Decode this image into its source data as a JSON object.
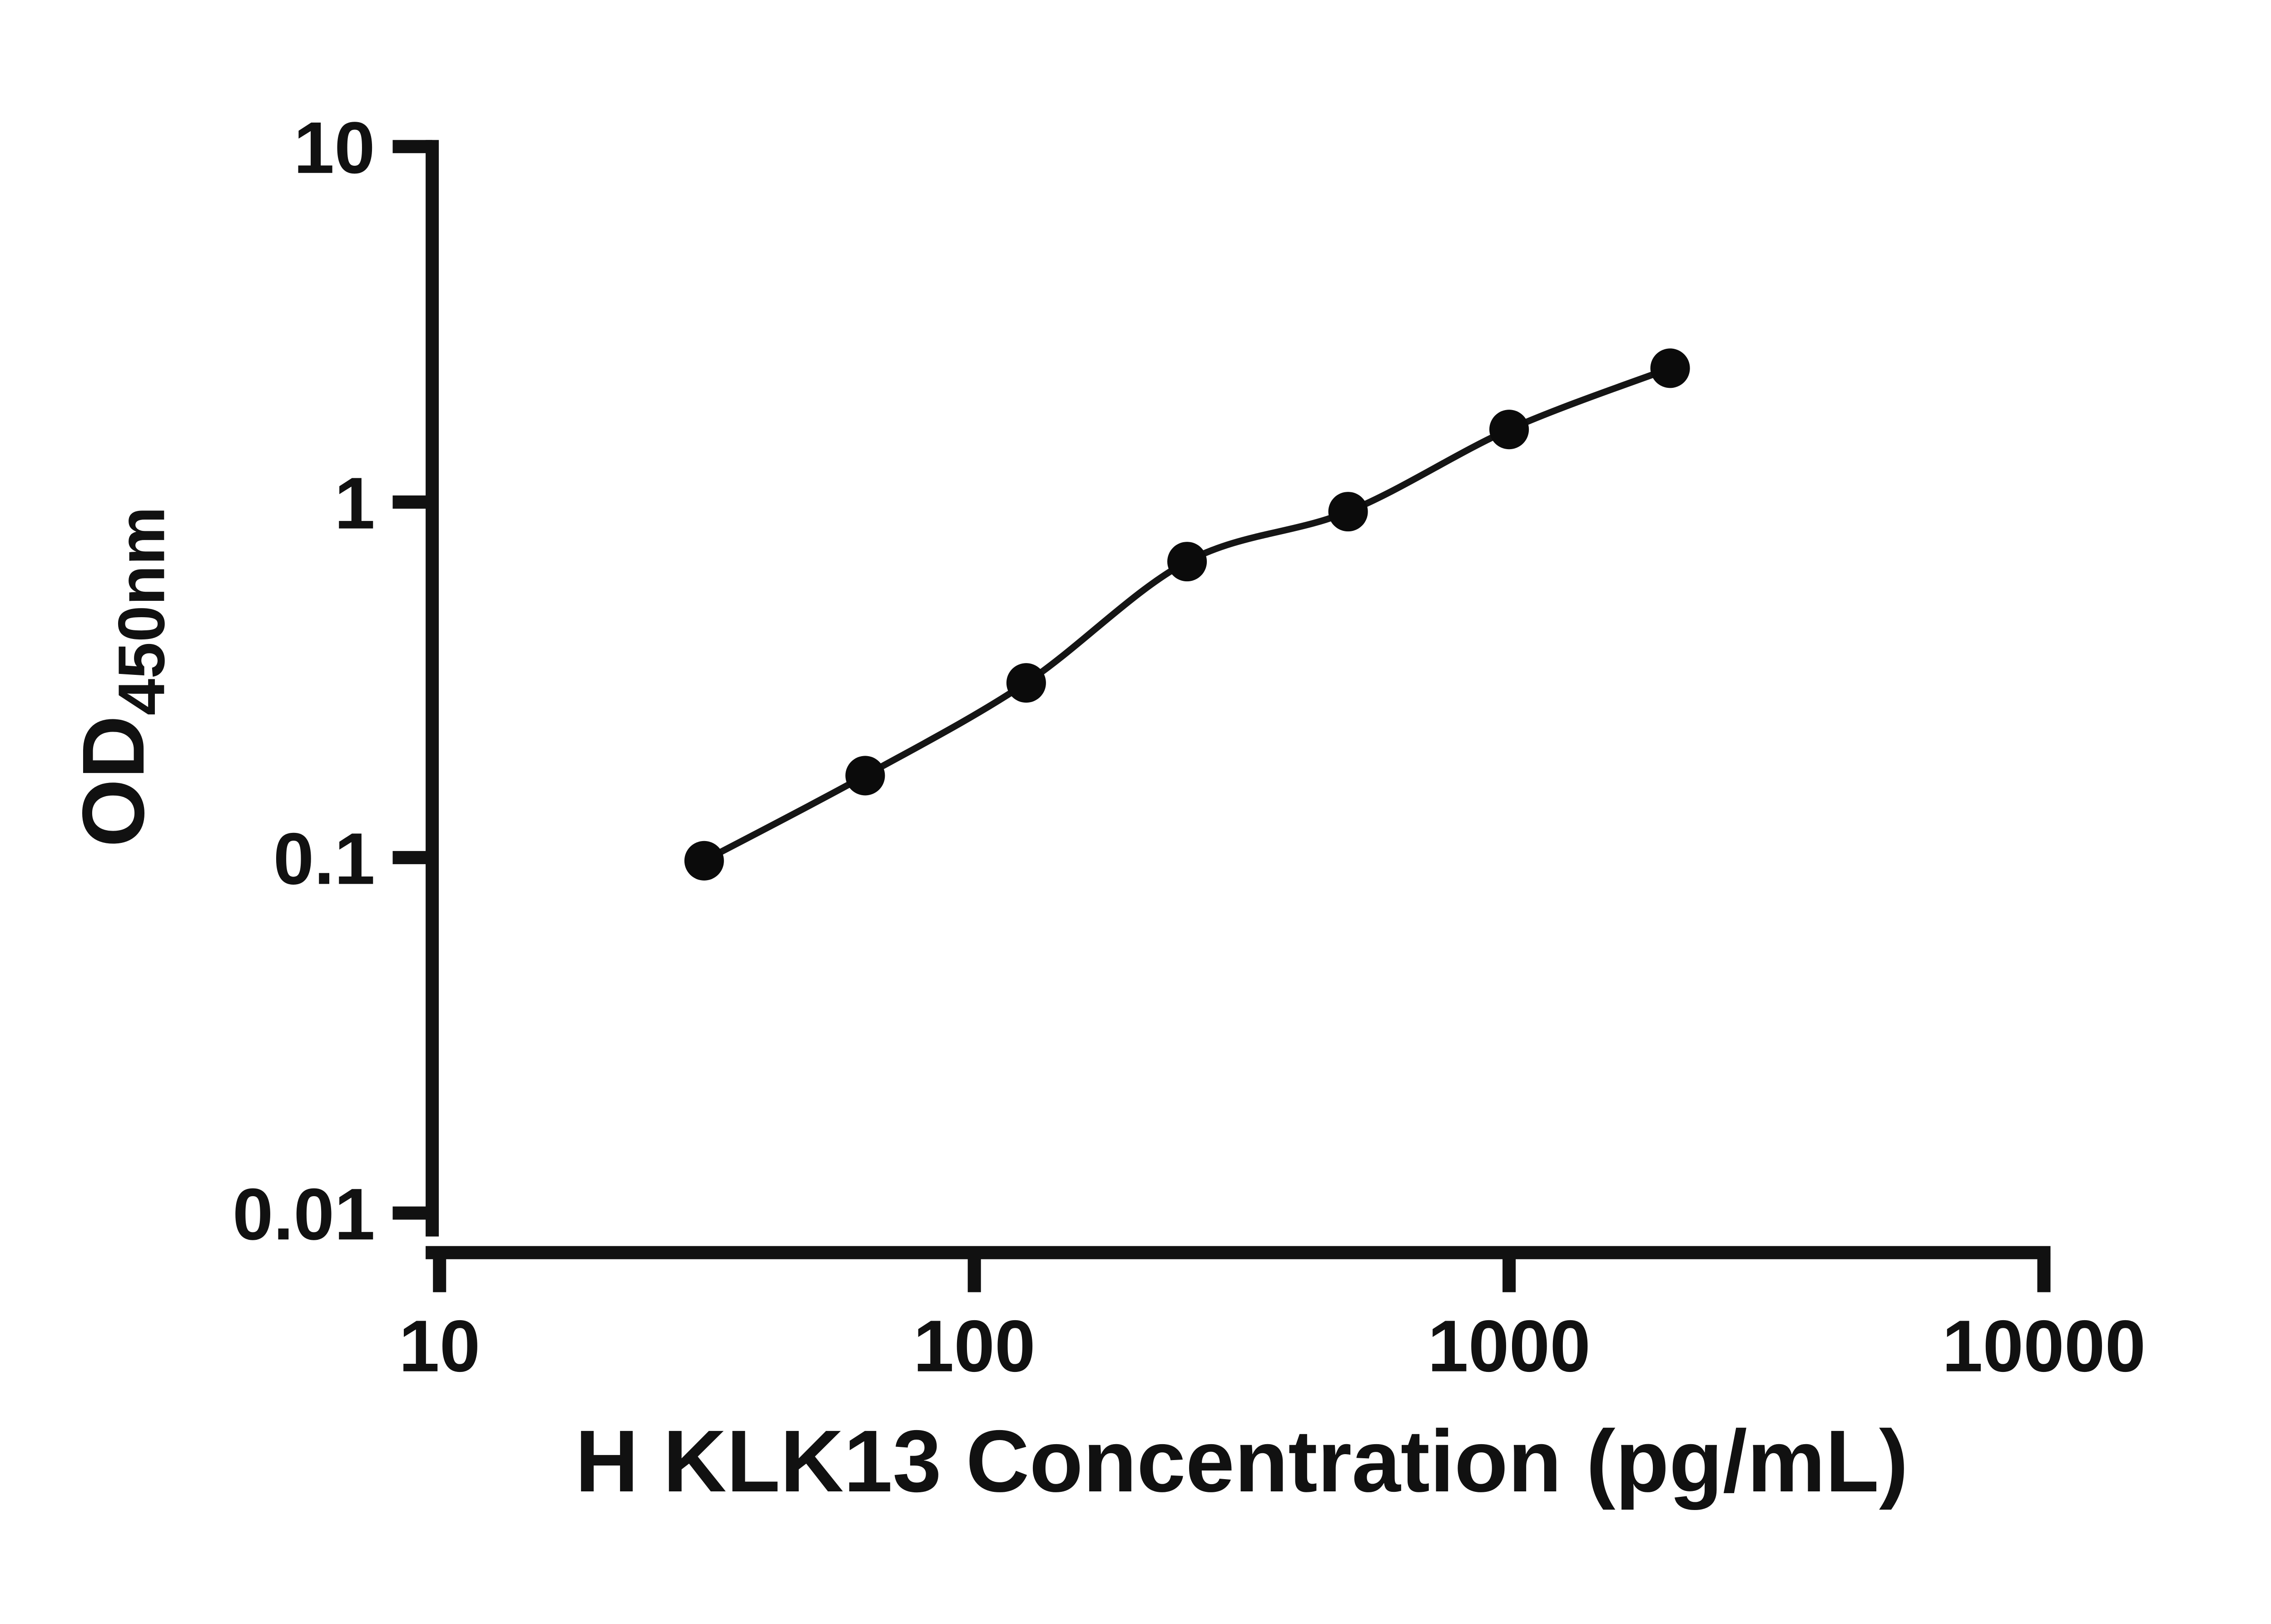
{
  "page": {
    "background": "#ffffff"
  },
  "chart_data": {
    "type": "scatter",
    "title": "",
    "xlabel": "H KLK13 Concentration (pg/mL)",
    "ylabel": "OD450nm",
    "ylabel_main": "OD",
    "ylabel_sub": "450nm",
    "x_scale": "log10",
    "y_scale": "log10",
    "xlim": [
      10,
      10000
    ],
    "ylim": [
      0.01,
      10
    ],
    "grid": false,
    "legend": "none",
    "x_ticks": [
      {
        "value": 10,
        "label": "10"
      },
      {
        "value": 100,
        "label": "100"
      },
      {
        "value": 1000,
        "label": "1000"
      },
      {
        "value": 10000,
        "label": "10000"
      }
    ],
    "y_ticks": [
      {
        "value": 10,
        "label": "10"
      },
      {
        "value": 1,
        "label": "1"
      },
      {
        "value": 0.1,
        "label": "0.1"
      },
      {
        "value": 0.01,
        "label": "0.01"
      }
    ],
    "series": [
      {
        "marker": "filled-circle",
        "marker_color": "#0b0b0b",
        "line": "smooth-fit-curve",
        "line_color": "#151515",
        "points": [
          {
            "x": 31.25,
            "y": 0.098
          },
          {
            "x": 62.5,
            "y": 0.17
          },
          {
            "x": 125,
            "y": 0.31
          },
          {
            "x": 250,
            "y": 0.68
          },
          {
            "x": 500,
            "y": 0.94
          },
          {
            "x": 1000,
            "y": 1.6
          },
          {
            "x": 2000,
            "y": 2.38
          }
        ]
      }
    ],
    "axis_color": "#111111",
    "text_color": "#111111"
  }
}
